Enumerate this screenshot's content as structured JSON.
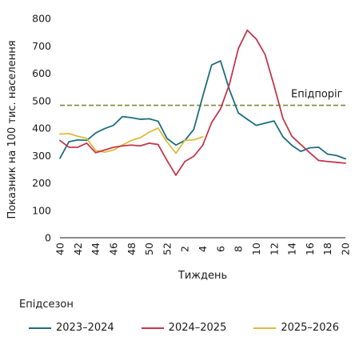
{
  "chart_data": {
    "type": "line",
    "xlabel": "Тиждень",
    "ylabel": "Показник на 100 тис. населення",
    "ylim": [
      0,
      800
    ],
    "yticks": [
      0,
      100,
      200,
      300,
      400,
      500,
      600,
      700,
      800
    ],
    "x": [
      "40",
      "41",
      "42",
      "43",
      "44",
      "45",
      "46",
      "47",
      "48",
      "49",
      "50",
      "51",
      "52",
      "1",
      "2",
      "3",
      "4",
      "5",
      "6",
      "7",
      "8",
      "9",
      "10",
      "11",
      "12",
      "13",
      "14",
      "15",
      "16",
      "17",
      "18",
      "19",
      "20"
    ],
    "xtick_labels": [
      "40",
      "42",
      "44",
      "46",
      "48",
      "50",
      "52",
      "2",
      "4",
      "6",
      "8",
      "10",
      "12",
      "14",
      "16",
      "18",
      "20"
    ],
    "threshold": {
      "label": "Епідпоріг",
      "value": 483,
      "color": "#7a8a3a"
    },
    "legend_title": "Епідсезон",
    "series": [
      {
        "name": "2023–2024",
        "color": "#1c6e80",
        "values": [
          290,
          350,
          357,
          355,
          382,
          398,
          410,
          442,
          438,
          432,
          434,
          425,
          362,
          338,
          355,
          395,
          515,
          630,
          645,
          540,
          455,
          432,
          410,
          418,
          426,
          368,
          337,
          315,
          328,
          330,
          305,
          300,
          288
        ]
      },
      {
        "name": "2024–2025",
        "color": "#c3374d",
        "values": [
          355,
          330,
          330,
          345,
          310,
          320,
          330,
          335,
          338,
          335,
          345,
          340,
          282,
          228,
          278,
          297,
          337,
          420,
          470,
          560,
          690,
          757,
          725,
          668,
          555,
          435,
          370,
          340,
          310,
          282,
          278,
          275,
          272
        ]
      },
      {
        "name": "2025–2026",
        "color": "#e0b93a",
        "values": [
          378,
          380,
          370,
          362,
          318,
          312,
          320,
          338,
          355,
          365,
          385,
          400,
          350,
          308,
          355,
          357,
          368,
          null,
          null,
          null,
          null,
          null,
          null,
          null,
          null,
          null,
          null,
          null,
          null,
          null,
          null,
          null,
          null
        ]
      }
    ],
    "grid": false,
    "legend_position": "bottom"
  }
}
